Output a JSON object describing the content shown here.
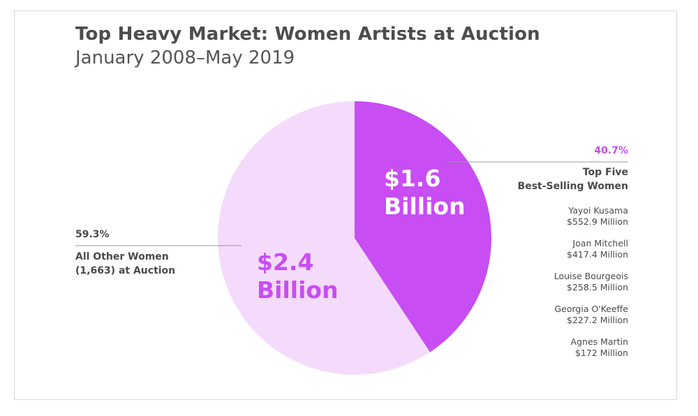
{
  "header": {
    "title": "Top Heavy Market: Women Artists at Auction",
    "subtitle": "January 2008–May 2019"
  },
  "colors": {
    "top_five": "#c84df3",
    "all_other": "#f4dbfb",
    "text": "#4a4a4a"
  },
  "chart_data": {
    "type": "pie",
    "title": "Top Heavy Market: Women Artists at Auction",
    "subtitle": "January 2008–May 2019",
    "slices": [
      {
        "label_line1": "Top Five",
        "label_line2": "Best-Selling Women",
        "percent": 40.7,
        "percent_label": "40.7%",
        "value_line1": "$1.6",
        "value_line2": "Billion",
        "color": "#c84df3"
      },
      {
        "label_line1": "All Other Women",
        "label_line2": "(1,663) at Auction",
        "percent": 59.3,
        "percent_label": "59.3%",
        "value_line1": "$2.4",
        "value_line2": "Billion",
        "color": "#f4dbfb"
      }
    ],
    "breakdown": [
      {
        "name": "Yayoi Kusama",
        "value": "$552.9 Million"
      },
      {
        "name": "Joan Mitchell",
        "value": "$417.4 Million"
      },
      {
        "name": "Louise Bourgeois",
        "value": "$258.5 Million"
      },
      {
        "name": "Georgia O'Keeffe",
        "value": "$227.2 Million"
      },
      {
        "name": "Agnes Martin",
        "value": "$172 Million"
      }
    ]
  }
}
